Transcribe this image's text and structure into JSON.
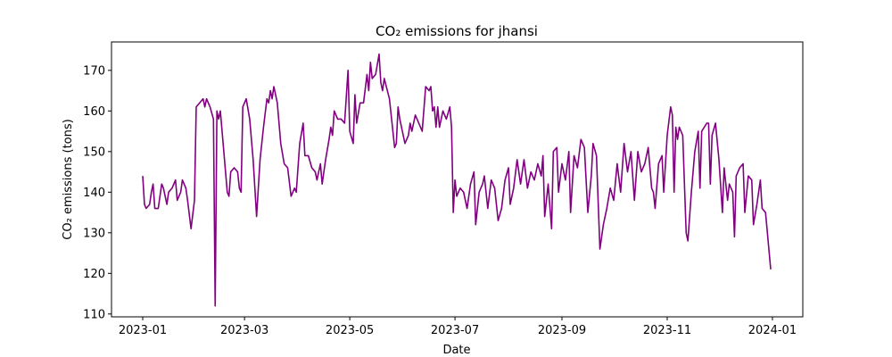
{
  "chart_data": {
    "type": "line",
    "title": "CO₂ emissions for jhansi",
    "x_label": "Date",
    "y_label": "CO₂ emissions (tons)",
    "xlim": [
      -18.1,
      382.6
    ],
    "ylim": [
      109.3,
      177.0
    ],
    "xticks": [
      {
        "value": 0,
        "label": "2023-01"
      },
      {
        "value": 59,
        "label": "2023-03"
      },
      {
        "value": 120,
        "label": "2023-05"
      },
      {
        "value": 181,
        "label": "2023-07"
      },
      {
        "value": 243,
        "label": "2023-09"
      },
      {
        "value": 304,
        "label": "2023-11"
      },
      {
        "value": 365,
        "label": "2024-01"
      }
    ],
    "yticks": [
      110,
      120,
      130,
      140,
      150,
      160,
      170
    ],
    "grid": false,
    "x": [
      0,
      1,
      2,
      4,
      5,
      6,
      7,
      9,
      11,
      12,
      14,
      15,
      17,
      19,
      20,
      22,
      23,
      25,
      26,
      28,
      30,
      31,
      33,
      35,
      36,
      37,
      39,
      41,
      42,
      43,
      44,
      45,
      47,
      49,
      50,
      51,
      53,
      55,
      56,
      57,
      58,
      60,
      62,
      64,
      66,
      68,
      70,
      72,
      73,
      74,
      75,
      76,
      78,
      80,
      82,
      84,
      86,
      88,
      89,
      91,
      93,
      94,
      96,
      98,
      100,
      101,
      103,
      104,
      106,
      108,
      109,
      110,
      111,
      113,
      115,
      117,
      119,
      120,
      122,
      123,
      124,
      126,
      128,
      130,
      131,
      132,
      133,
      135,
      137,
      138,
      139,
      140,
      143,
      146,
      147,
      148,
      149,
      152,
      154,
      155,
      156,
      158,
      160,
      162,
      164,
      166,
      167,
      168,
      169,
      170,
      171,
      172,
      174,
      176,
      178,
      179,
      180,
      181,
      182,
      184,
      186,
      188,
      190,
      192,
      193,
      195,
      197,
      198,
      200,
      202,
      204,
      206,
      208,
      210,
      212,
      213,
      215,
      217,
      219,
      221,
      223,
      225,
      227,
      229,
      231,
      232,
      233,
      235,
      237,
      238,
      240,
      241,
      243,
      245,
      247,
      248,
      250,
      252,
      254,
      256,
      258,
      260,
      261,
      263,
      265,
      267,
      269,
      271,
      273,
      275,
      277,
      279,
      281,
      283,
      285,
      287,
      289,
      291,
      293,
      295,
      296,
      297,
      299,
      301,
      302,
      304,
      306,
      307,
      308,
      309,
      310,
      311,
      313,
      315,
      316,
      318,
      320,
      322,
      323,
      324,
      327,
      328,
      329,
      330,
      332,
      334,
      336,
      337,
      339,
      340,
      342,
      343,
      344,
      346,
      348,
      349,
      351,
      353,
      354,
      356,
      358,
      359,
      361,
      364
    ],
    "series": [
      {
        "name": "CO₂ emissions",
        "color": "#800080",
        "values": [
          144,
          137,
          136,
          137,
          140,
          142,
          136,
          136,
          142,
          141,
          137,
          140,
          141,
          143,
          138,
          140,
          143,
          141,
          138,
          131,
          138,
          161,
          162,
          163,
          161,
          163,
          161,
          158,
          112,
          160,
          158,
          160,
          150,
          140,
          139,
          145,
          146,
          145,
          141,
          140,
          161,
          163,
          158,
          148,
          134,
          148,
          156,
          163,
          162,
          165,
          163,
          166,
          162,
          152,
          147,
          146,
          139,
          141,
          140,
          152,
          157,
          149,
          149,
          146,
          145,
          143,
          147,
          142,
          148,
          153,
          156,
          154,
          160,
          158,
          158,
          157,
          170,
          155,
          152,
          164,
          157,
          162,
          162,
          169,
          165,
          172,
          168,
          169,
          174,
          167,
          165,
          168,
          163,
          151,
          152,
          161,
          158,
          152,
          154,
          157,
          155,
          159,
          157,
          155,
          166,
          165,
          166,
          160,
          161,
          156,
          161,
          156,
          160,
          158,
          161,
          156,
          135,
          143,
          139,
          141,
          140,
          136,
          142,
          145,
          132,
          140,
          142,
          144,
          136,
          143,
          141,
          133,
          136,
          143,
          146,
          137,
          141,
          148,
          142,
          148,
          141,
          145,
          143,
          147,
          144,
          149,
          134,
          142,
          131,
          150,
          151,
          140,
          147,
          143,
          150,
          135,
          149,
          146,
          153,
          151,
          135,
          144,
          152,
          149,
          126,
          132,
          136,
          141,
          138,
          147,
          140,
          152,
          145,
          150,
          138,
          150,
          145,
          147,
          151,
          141,
          140,
          136,
          147,
          149,
          140,
          154,
          161,
          159,
          140,
          156,
          153,
          156,
          154,
          130,
          128,
          140,
          150,
          155,
          141,
          155,
          157,
          157,
          142,
          154,
          157,
          148,
          135,
          146,
          138,
          142,
          140,
          129,
          144,
          146,
          147,
          135,
          144,
          143,
          132,
          137,
          143,
          136,
          135,
          121
        ]
      }
    ]
  }
}
